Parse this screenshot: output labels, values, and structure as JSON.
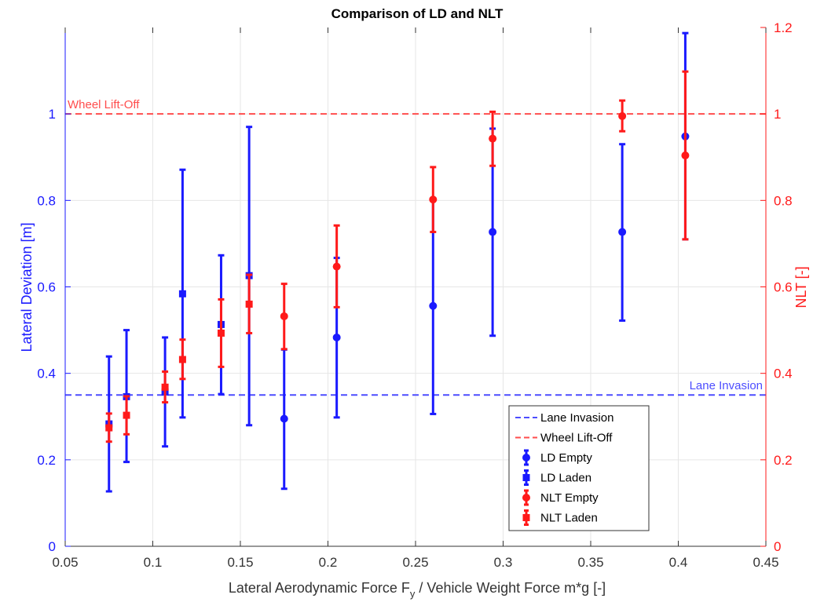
{
  "chart_data": {
    "type": "scatter",
    "title": "Comparison of LD and NLT",
    "xlabel_main": "Lateral Aerodynamic Force F",
    "xlabel_sub": "y",
    "xlabel_rest": " / Vehicle Weight Force m*g [-]",
    "ylabel_left": "Lateral Deviation [m]",
    "ylabel_right": "NLT [-]",
    "xlim": [
      0.05,
      0.45
    ],
    "ylim_left": [
      0,
      1.2
    ],
    "ylim_right": [
      0,
      1.2
    ],
    "xticks": [
      0.05,
      0.1,
      0.15,
      0.2,
      0.25,
      0.3,
      0.35,
      0.4,
      0.45
    ],
    "xtick_labels": [
      "0.05",
      "0.1",
      "0.15",
      "0.2",
      "0.25",
      "0.3",
      "0.35",
      "0.4",
      "0.45"
    ],
    "yticks_left": [
      0,
      0.2,
      0.4,
      0.6,
      0.8,
      1
    ],
    "ytick_labels_left": [
      "0",
      "0.2",
      "0.4",
      "0.6",
      "0.8",
      "1"
    ],
    "yticks_right": [
      0,
      0.2,
      0.4,
      0.6,
      0.8,
      1,
      1.2
    ],
    "ytick_labels_right": [
      "0",
      "0.2",
      "0.4",
      "0.6",
      "0.8",
      "1",
      "1.2"
    ],
    "grid": true,
    "legend_position": "bottom-right",
    "colors": {
      "blue": "#1a1aff",
      "red": "#ff1a1a",
      "grid": "#e6e6e6",
      "axis": "#333333"
    },
    "reference_lines": [
      {
        "name": "Lane Invasion",
        "axis": "left",
        "y": 0.35,
        "color": "#4d4dff",
        "label": "Lane Invasion",
        "label_position": "right"
      },
      {
        "name": "Wheel Lift-Off",
        "axis": "right",
        "y": 1.0,
        "color": "#ff4d4d",
        "label": "Wheel Lift-Off",
        "label_position": "left"
      }
    ],
    "series": [
      {
        "name": "LD Empty",
        "axis": "left",
        "marker": "circle",
        "color": "#1a1aff",
        "points": [
          {
            "x": 0.175,
            "y": 0.295,
            "low": 0.133,
            "high": 0.455
          },
          {
            "x": 0.205,
            "y": 0.483,
            "low": 0.298,
            "high": 0.667
          },
          {
            "x": 0.26,
            "y": 0.556,
            "low": 0.306,
            "high": 0.805
          },
          {
            "x": 0.294,
            "y": 0.727,
            "low": 0.487,
            "high": 0.966
          },
          {
            "x": 0.368,
            "y": 0.727,
            "low": 0.522,
            "high": 0.93
          },
          {
            "x": 0.404,
            "y": 0.948,
            "low": 0.71,
            "high": 1.187
          }
        ]
      },
      {
        "name": "LD Laden",
        "axis": "left",
        "marker": "square",
        "color": "#1a1aff",
        "points": [
          {
            "x": 0.075,
            "y": 0.283,
            "low": 0.127,
            "high": 0.439
          },
          {
            "x": 0.085,
            "y": 0.346,
            "low": 0.195,
            "high": 0.5
          },
          {
            "x": 0.107,
            "y": 0.357,
            "low": 0.231,
            "high": 0.483
          },
          {
            "x": 0.117,
            "y": 0.584,
            "low": 0.298,
            "high": 0.871
          },
          {
            "x": 0.139,
            "y": 0.513,
            "low": 0.352,
            "high": 0.673
          },
          {
            "x": 0.155,
            "y": 0.626,
            "low": 0.28,
            "high": 0.97
          }
        ]
      },
      {
        "name": "NLT Empty",
        "axis": "right",
        "marker": "circle",
        "color": "#ff1a1a",
        "points": [
          {
            "x": 0.175,
            "y": 0.532,
            "low": 0.456,
            "high": 0.607
          },
          {
            "x": 0.205,
            "y": 0.647,
            "low": 0.553,
            "high": 0.742
          },
          {
            "x": 0.26,
            "y": 0.802,
            "low": 0.727,
            "high": 0.877
          },
          {
            "x": 0.294,
            "y": 0.943,
            "low": 0.88,
            "high": 1.005
          },
          {
            "x": 0.368,
            "y": 0.995,
            "low": 0.96,
            "high": 1.031
          },
          {
            "x": 0.404,
            "y": 0.904,
            "low": 0.71,
            "high": 1.098
          }
        ]
      },
      {
        "name": "NLT Laden",
        "axis": "right",
        "marker": "square",
        "color": "#ff1a1a",
        "points": [
          {
            "x": 0.075,
            "y": 0.274,
            "low": 0.242,
            "high": 0.307
          },
          {
            "x": 0.085,
            "y": 0.303,
            "low": 0.259,
            "high": 0.347
          },
          {
            "x": 0.107,
            "y": 0.368,
            "low": 0.333,
            "high": 0.404
          },
          {
            "x": 0.117,
            "y": 0.432,
            "low": 0.387,
            "high": 0.478
          },
          {
            "x": 0.139,
            "y": 0.493,
            "low": 0.415,
            "high": 0.571
          },
          {
            "x": 0.155,
            "y": 0.56,
            "low": 0.493,
            "high": 0.628
          }
        ]
      }
    ],
    "legend": [
      {
        "label": "Lane Invasion",
        "kind": "dash",
        "color": "#4d4dff"
      },
      {
        "label": "Wheel Lift-Off",
        "kind": "dash",
        "color": "#ff4d4d"
      },
      {
        "label": "LD Empty",
        "kind": "circle",
        "color": "#1a1aff"
      },
      {
        "label": "LD Laden",
        "kind": "square",
        "color": "#1a1aff"
      },
      {
        "label": "NLT Empty",
        "kind": "circle",
        "color": "#ff1a1a"
      },
      {
        "label": "NLT Laden",
        "kind": "square",
        "color": "#ff1a1a"
      }
    ]
  }
}
